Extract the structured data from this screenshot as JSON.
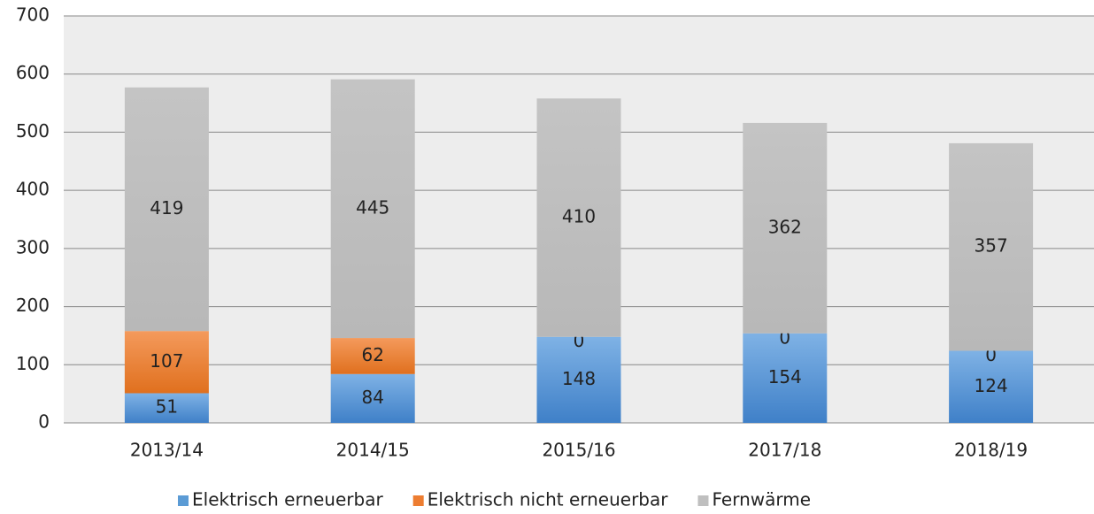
{
  "chart_data": {
    "type": "stacked_bar",
    "categories": [
      "2013/14",
      "2014/15",
      "2015/16",
      "2017/18",
      "2018/19"
    ],
    "series": [
      {
        "name": "Elektrisch erneuerbar",
        "color": "#5b9bd5",
        "values": [
          51,
          84,
          148,
          154,
          124
        ]
      },
      {
        "name": "Elektrisch nicht erneuerbar",
        "color": "#ed7d31",
        "values": [
          107,
          62,
          0,
          0,
          0
        ]
      },
      {
        "name": "Fernwärme",
        "color": "#bfbfbf",
        "values": [
          419,
          445,
          410,
          362,
          357
        ]
      }
    ],
    "ylim": [
      0,
      700
    ],
    "yticks": [
      0,
      100,
      200,
      300,
      400,
      500,
      600,
      700
    ],
    "grid": true,
    "legend": "bottom"
  }
}
